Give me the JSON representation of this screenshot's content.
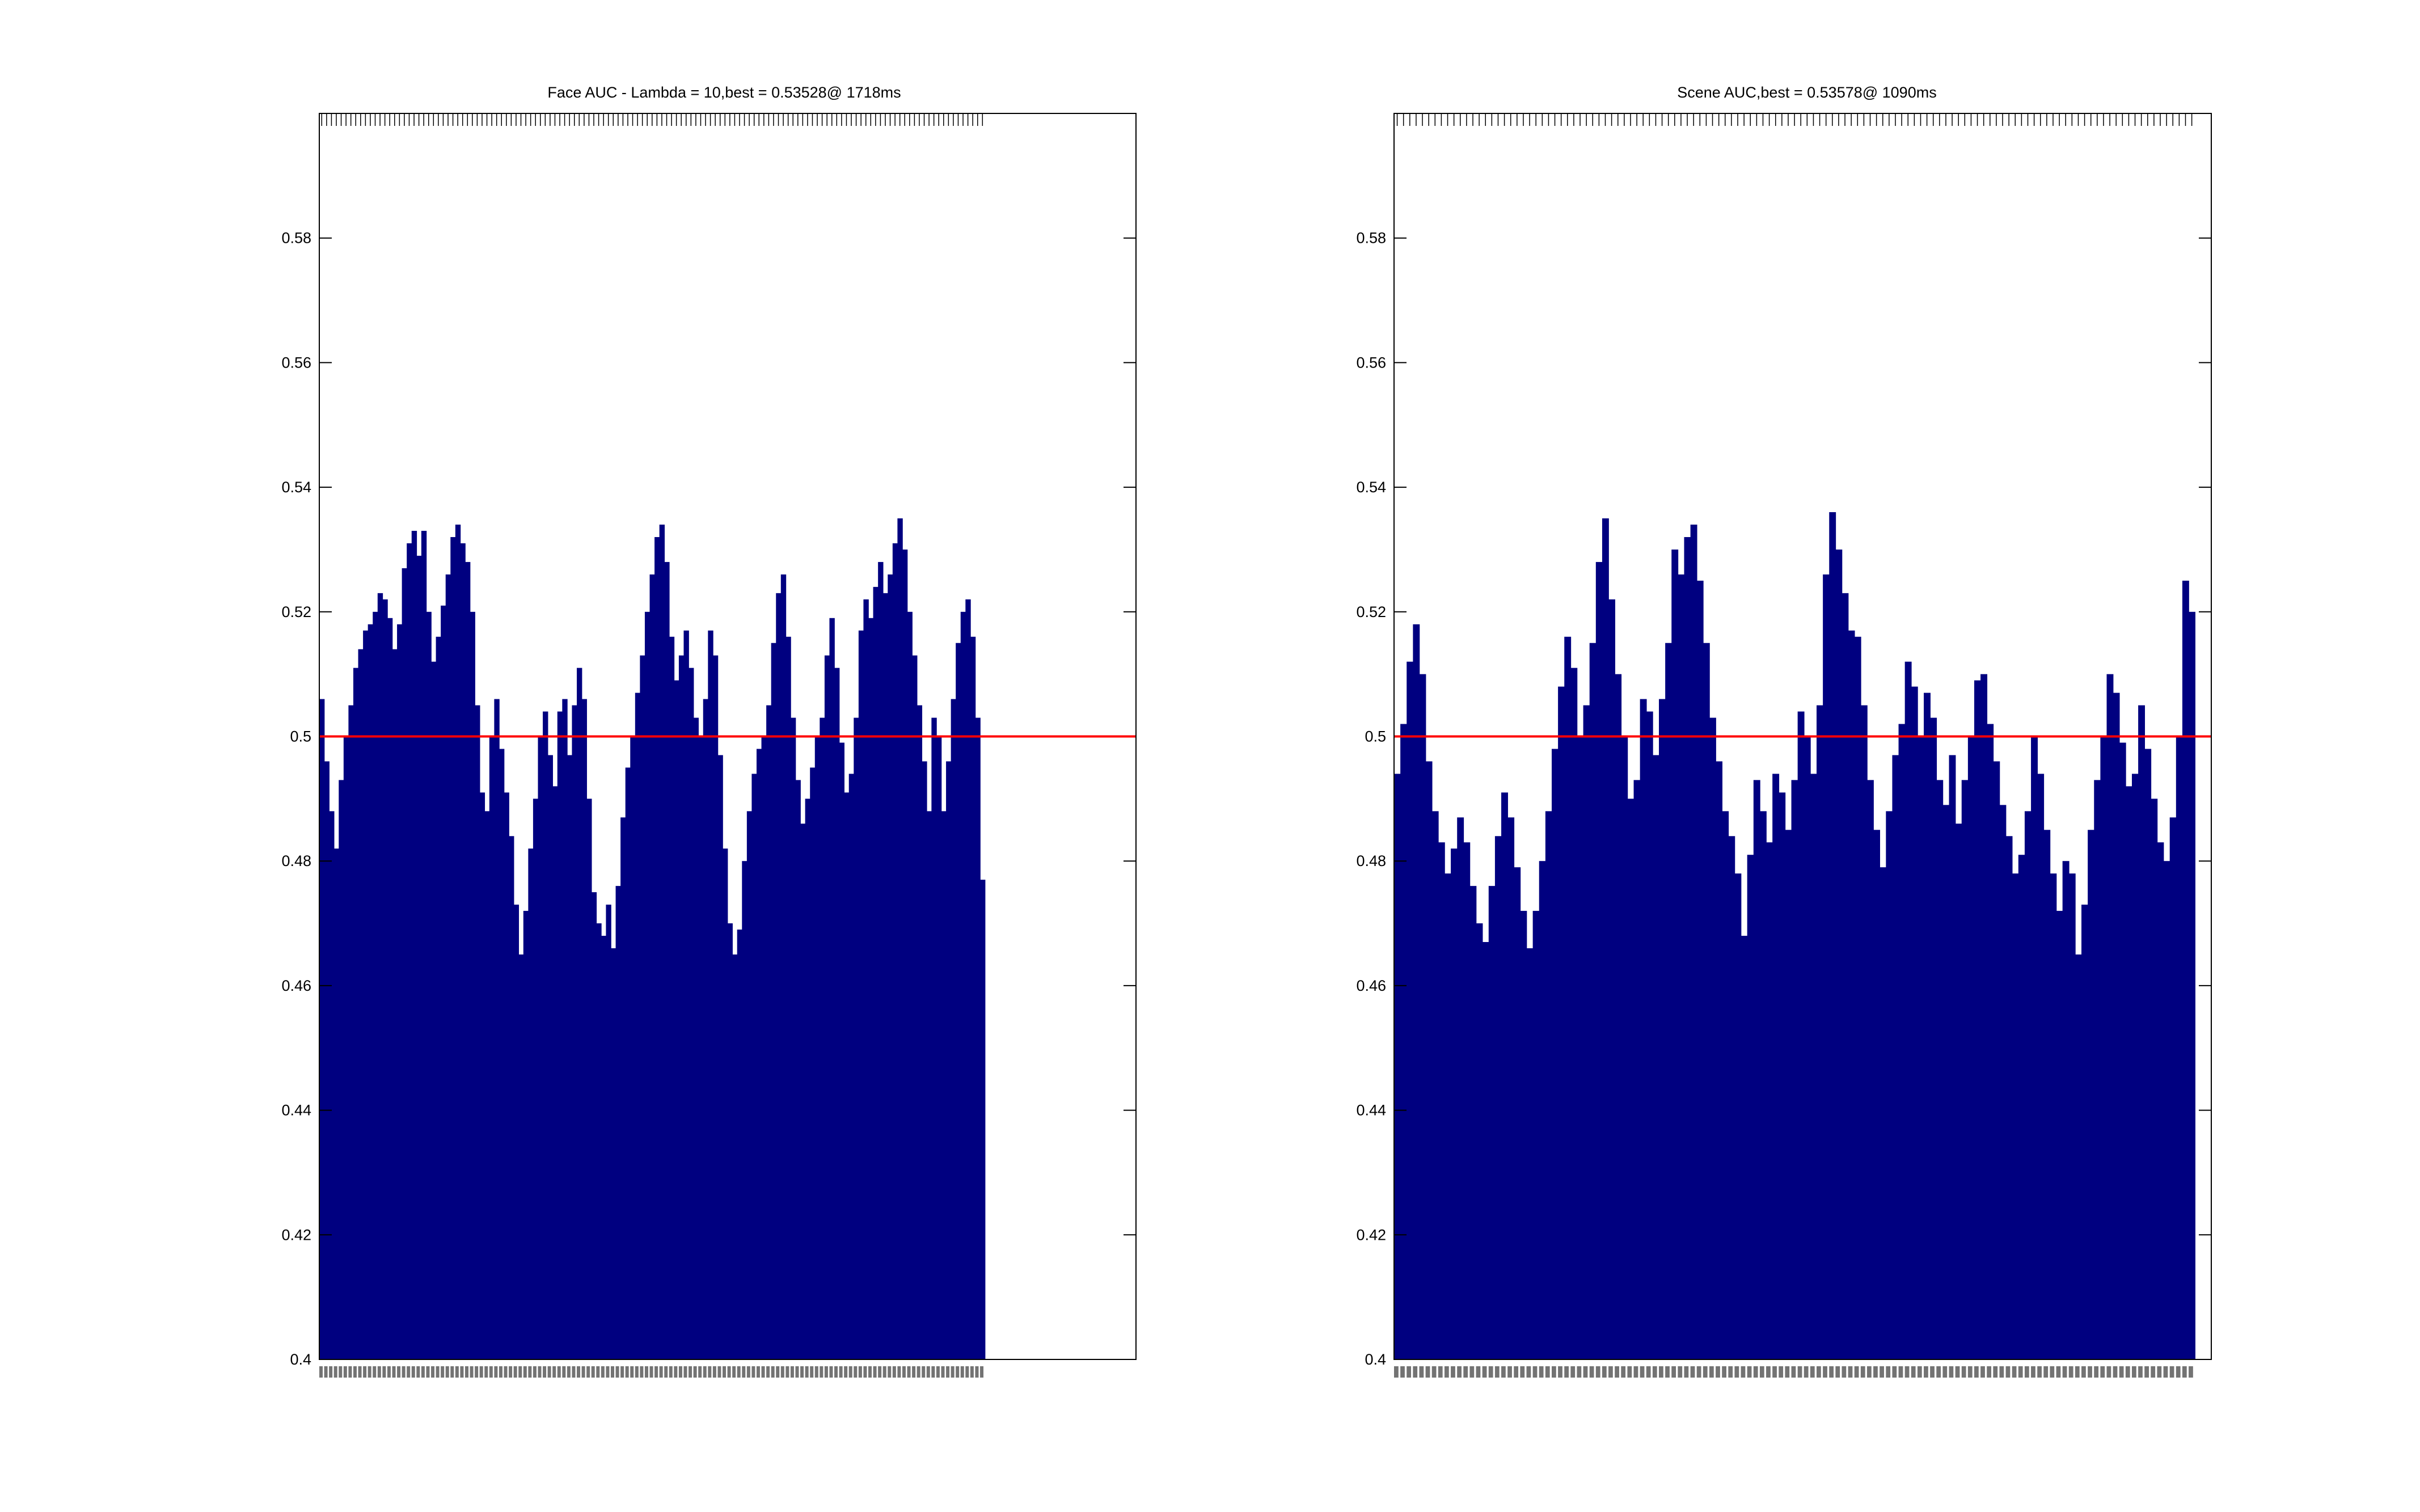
{
  "chart_data": [
    {
      "type": "bar",
      "title": "Face AUC - Lambda = 10,best = 0.53528@ 1718ms",
      "xlabel": "",
      "ylabel": "",
      "ylim": [
        0.4,
        0.6
      ],
      "yticks": [
        "0.4",
        "0.42",
        "0.44",
        "0.46",
        "0.48",
        "0.5",
        "0.52",
        "0.54",
        "0.56",
        "0.58"
      ],
      "reference_line": {
        "y": 0.5,
        "color": "#ff0000"
      },
      "bar_color": "#000080",
      "x_range_fraction": 0.815,
      "series": [
        {
          "values": [
            0.506,
            0.496,
            0.488,
            0.482,
            0.493,
            0.5,
            0.505,
            0.511,
            0.514,
            0.517,
            0.518,
            0.52,
            0.523,
            0.522,
            0.519,
            0.514,
            0.518,
            0.527,
            0.531,
            0.533,
            0.529,
            0.533,
            0.52,
            0.512,
            0.516,
            0.521,
            0.526,
            0.532,
            0.534,
            0.531,
            0.528,
            0.52,
            0.505,
            0.491,
            0.488,
            0.5,
            0.506,
            0.498,
            0.491,
            0.484,
            0.473,
            0.465,
            0.472,
            0.482,
            0.49,
            0.5,
            0.504,
            0.497,
            0.492,
            0.504,
            0.506,
            0.497,
            0.505,
            0.511,
            0.506,
            0.49,
            0.475,
            0.47,
            0.468,
            0.473,
            0.466,
            0.476,
            0.487,
            0.495,
            0.5,
            0.507,
            0.513,
            0.52,
            0.526,
            0.532,
            0.534,
            0.528,
            0.516,
            0.509,
            0.513,
            0.517,
            0.511,
            0.503,
            0.5,
            0.506,
            0.517,
            0.513,
            0.497,
            0.482,
            0.47,
            0.465,
            0.469,
            0.48,
            0.488,
            0.494,
            0.498,
            0.5,
            0.505,
            0.515,
            0.523,
            0.526,
            0.516,
            0.503,
            0.493,
            0.486,
            0.49,
            0.495,
            0.5,
            0.503,
            0.513,
            0.519,
            0.511,
            0.499,
            0.491,
            0.494,
            0.503,
            0.517,
            0.522,
            0.519,
            0.524,
            0.528,
            0.523,
            0.526,
            0.531,
            0.535,
            0.53,
            0.52,
            0.513,
            0.505,
            0.496,
            0.488,
            0.503,
            0.5,
            0.488,
            0.496,
            0.506,
            0.515,
            0.52,
            0.522,
            0.516,
            0.503,
            0.477
          ]
        }
      ],
      "xtick_labels_illegible": true
    },
    {
      "type": "bar",
      "title": "Scene AUC,best = 0.53578@ 1090ms",
      "xlabel": "",
      "ylabel": "",
      "ylim": [
        0.4,
        0.6
      ],
      "yticks": [
        "0.4",
        "0.42",
        "0.44",
        "0.46",
        "0.48",
        "0.5",
        "0.52",
        "0.54",
        "0.56",
        "0.58"
      ],
      "reference_line": {
        "y": 0.5,
        "color": "#ff0000"
      },
      "bar_color": "#000080",
      "x_range_fraction": 0.98,
      "series": [
        {
          "values": [
            0.494,
            0.502,
            0.512,
            0.518,
            0.51,
            0.496,
            0.488,
            0.483,
            0.478,
            0.482,
            0.487,
            0.483,
            0.476,
            0.47,
            0.467,
            0.476,
            0.484,
            0.491,
            0.487,
            0.479,
            0.472,
            0.466,
            0.472,
            0.48,
            0.488,
            0.498,
            0.508,
            0.516,
            0.511,
            0.5,
            0.505,
            0.515,
            0.528,
            0.535,
            0.522,
            0.51,
            0.5,
            0.49,
            0.493,
            0.506,
            0.504,
            0.497,
            0.506,
            0.515,
            0.53,
            0.526,
            0.532,
            0.534,
            0.525,
            0.515,
            0.503,
            0.496,
            0.488,
            0.484,
            0.478,
            0.468,
            0.481,
            0.493,
            0.488,
            0.483,
            0.494,
            0.491,
            0.485,
            0.493,
            0.504,
            0.5,
            0.494,
            0.505,
            0.526,
            0.536,
            0.53,
            0.523,
            0.517,
            0.516,
            0.505,
            0.493,
            0.485,
            0.479,
            0.488,
            0.497,
            0.502,
            0.512,
            0.508,
            0.5,
            0.507,
            0.503,
            0.493,
            0.489,
            0.497,
            0.486,
            0.493,
            0.5,
            0.509,
            0.51,
            0.502,
            0.496,
            0.489,
            0.484,
            0.478,
            0.481,
            0.488,
            0.5,
            0.494,
            0.485,
            0.478,
            0.472,
            0.48,
            0.478,
            0.465,
            0.473,
            0.485,
            0.493,
            0.5,
            0.51,
            0.507,
            0.499,
            0.492,
            0.494,
            0.505,
            0.498,
            0.49,
            0.483,
            0.48,
            0.487,
            0.5,
            0.525,
            0.52
          ]
        }
      ],
      "xtick_labels_illegible": true
    }
  ]
}
